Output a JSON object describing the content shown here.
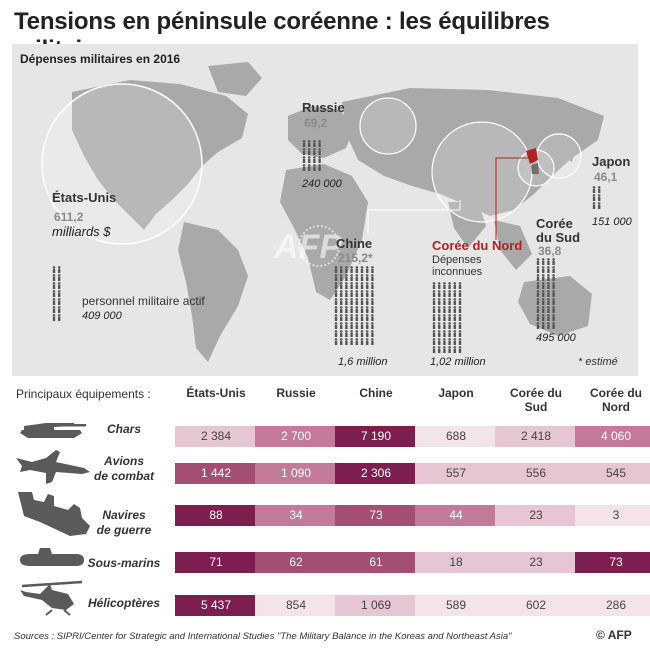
{
  "title": "Tensions en péninsule coréenne : les équilibres militaires",
  "map": {
    "subtitle": "Dépenses militaires en 2016",
    "unit": "milliards $",
    "personnel_label": "personnel militaire actif",
    "estimate_note": "* estimé",
    "watermark": "AFP",
    "countries": {
      "us": {
        "name": "États-Unis",
        "spending": "611,2",
        "personnel": "409 000"
      },
      "russia": {
        "name": "Russie",
        "spending": "69,2",
        "personnel": "240 000"
      },
      "china": {
        "name": "Chine",
        "spending": "215,2*",
        "personnel": "1,6 million"
      },
      "north_korea": {
        "name": "Corée du Nord",
        "spending_note_1": "Dépenses",
        "spending_note_2": "inconnues",
        "personnel": "1,02 million"
      },
      "south_korea": {
        "name_1": "Corée",
        "name_2": "du Sud",
        "spending": "36,8",
        "personnel": "495 000"
      },
      "japan": {
        "name": "Japon",
        "spending": "46,1",
        "personnel": "151 000"
      }
    }
  },
  "chart_data": [
    {
      "type": "bubble",
      "title": "Dépenses militaires en 2016",
      "unit": "milliards $",
      "categories": [
        "États-Unis",
        "Russie",
        "Chine",
        "Corée du Sud",
        "Japon",
        "Corée du Nord"
      ],
      "values": [
        611.2,
        69.2,
        215.2,
        36.8,
        46.1,
        null
      ],
      "personnel": [
        "409 000",
        "240 000",
        "1,6 million",
        "495 000",
        "151 000",
        "1,02 million"
      ]
    },
    {
      "type": "table",
      "title": "Principaux équipements :",
      "columns": [
        "États-Unis",
        "Russie",
        "Chine",
        "Japon",
        "Corée du Sud",
        "Corée du Nord"
      ],
      "rows": [
        {
          "label": "Chars",
          "values": [
            2384,
            2700,
            7190,
            688,
            2418,
            4060
          ],
          "display": [
            "2 384",
            "2 700",
            "7 190",
            "688",
            "2 418",
            "4 060"
          ]
        },
        {
          "label": "Avions de combat",
          "values": [
            1442,
            1090,
            2306,
            557,
            556,
            545
          ],
          "display": [
            "1 442",
            "1 090",
            "2 306",
            "557",
            "556",
            "545"
          ]
        },
        {
          "label": "Navires de guerre",
          "values": [
            88,
            34,
            73,
            44,
            23,
            3
          ],
          "display": [
            "88",
            "34",
            "73",
            "44",
            "23",
            "3"
          ]
        },
        {
          "label": "Sous-marins",
          "values": [
            71,
            62,
            61,
            18,
            23,
            73
          ],
          "display": [
            "71",
            "62",
            "61",
            "18",
            "23",
            "73"
          ]
        },
        {
          "label": "Hélicoptères",
          "values": [
            5437,
            854,
            1069,
            589,
            602,
            286
          ],
          "display": [
            "5 437",
            "854",
            "1 069",
            "589",
            "602",
            "286"
          ]
        }
      ]
    }
  ],
  "table": {
    "header_label": "Principaux équipements :",
    "col_heads": [
      [
        "États-Unis",
        ""
      ],
      [
        "Russie",
        ""
      ],
      [
        "Chine",
        ""
      ],
      [
        "Japon",
        ""
      ],
      [
        "Corée du",
        "Sud"
      ],
      [
        "Corée du",
        "Nord"
      ]
    ],
    "row_labels": [
      [
        "Chars",
        ""
      ],
      [
        "Avions",
        "de combat"
      ],
      [
        "Navires",
        "de guerre"
      ],
      [
        "Sous-marins",
        ""
      ],
      [
        "Hélicoptères",
        ""
      ]
    ]
  },
  "colors": {
    "palest": "#f3e4ea",
    "pale": "#e6c6d2",
    "medium": "#c27a98",
    "strong": "#a54e74",
    "darkest": "#7c1f4e",
    "map_bg": "#e6e6e6",
    "land": "#a9a9a9",
    "accent_red": "#b22222"
  },
  "footer": {
    "sources": "Sources : SIPRI/Center for Strategic and International Studies \"The Military Balance in the Koreas and Northeast Asia\"",
    "credit": "© AFP"
  }
}
